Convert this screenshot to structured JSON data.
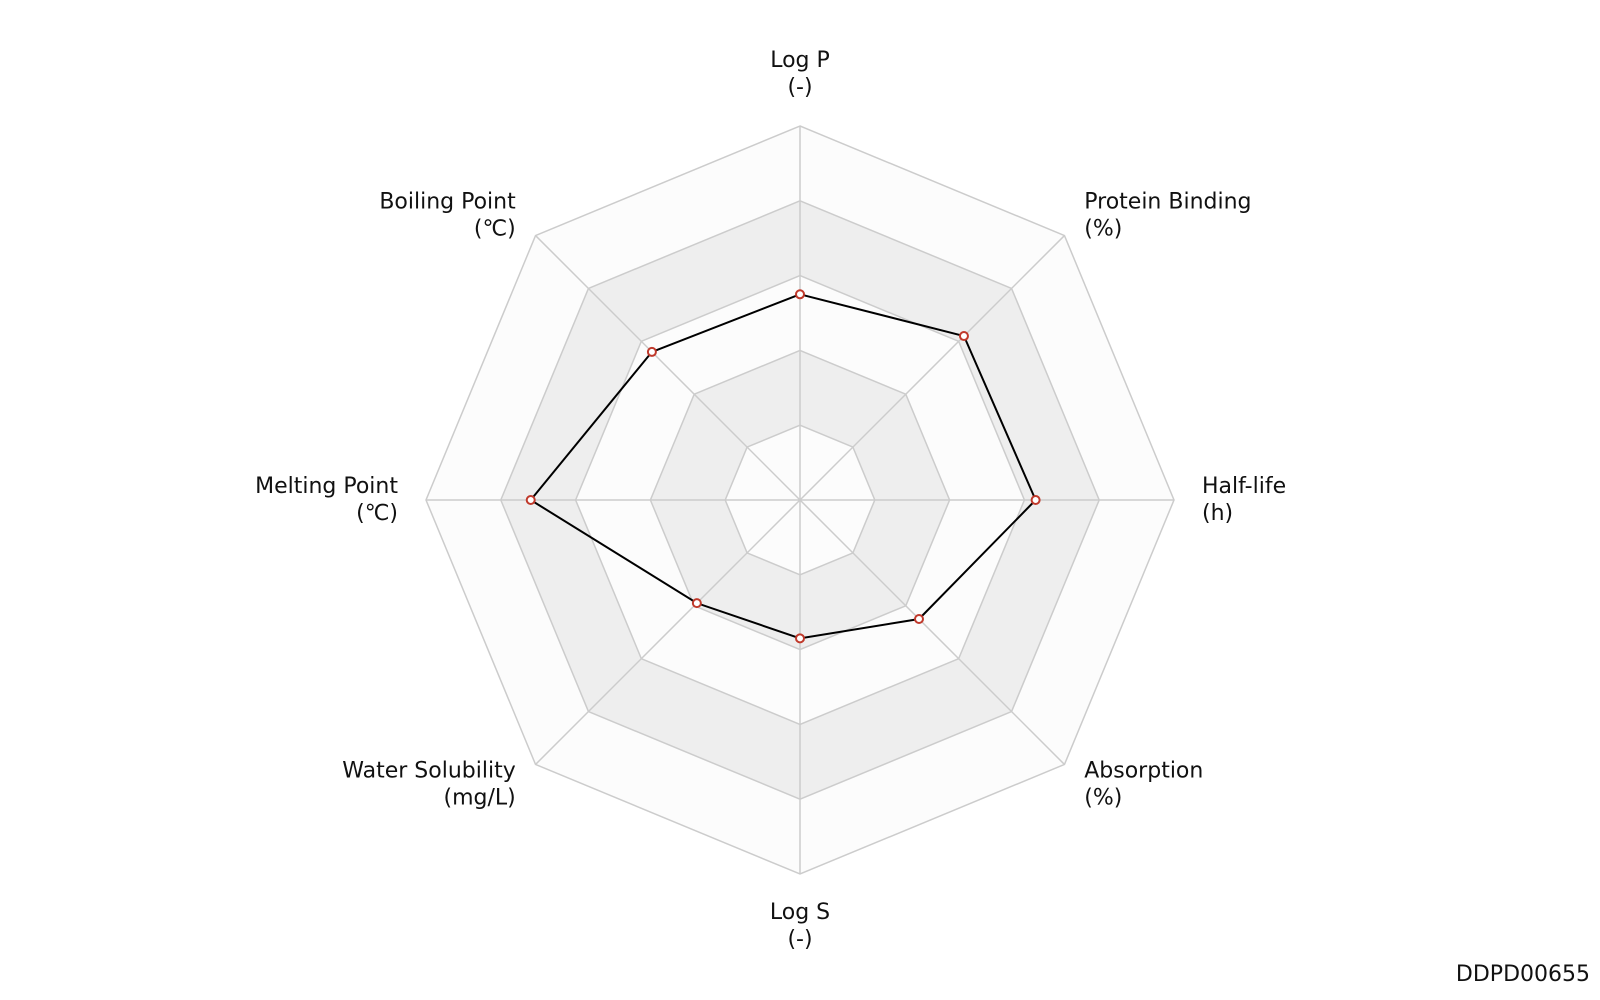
{
  "chart_data": {
    "type": "radar",
    "categories": [
      "Log P",
      "Protein Binding",
      "Half-life",
      "Absorption",
      "Log S",
      "Water Solubility",
      "Melting Point",
      "Boiling Point"
    ],
    "units": [
      "(-)",
      "(%)",
      "(h)",
      "(%)",
      "(-)",
      "(mg/L)",
      "(℃)",
      "(℃)"
    ],
    "values": [
      0.55,
      0.62,
      0.63,
      0.45,
      0.37,
      0.39,
      0.72,
      0.56
    ],
    "color": "#000000",
    "marker_color": "#c0392b",
    "ylim": [
      0,
      1
    ],
    "yticks": [
      0.2,
      0.4,
      0.6,
      0.8,
      1.0
    ],
    "grid": true,
    "footer": "DDPD00655"
  }
}
